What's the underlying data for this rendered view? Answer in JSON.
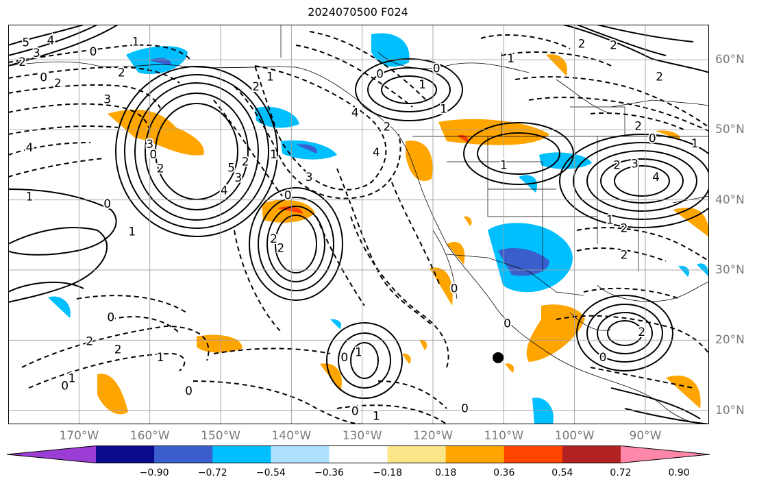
{
  "title": "2024070500 F024",
  "map": {
    "lon_range": [
      -180,
      -81
    ],
    "lat_range": [
      8,
      65
    ],
    "gridlines": true,
    "lon_labels": [
      "170°W",
      "160°W",
      "150°W",
      "140°W",
      "130°W",
      "120°W",
      "110°W",
      "100°W",
      "90°W"
    ],
    "lon_values": [
      -170,
      -160,
      -150,
      -140,
      -130,
      -120,
      -110,
      -100,
      -90
    ],
    "lat_labels": [
      "10°N",
      "20°N",
      "30°N",
      "40°N",
      "50°N",
      "60°N"
    ],
    "lat_values": [
      10,
      20,
      30,
      40,
      50,
      60
    ],
    "contour_labels": [
      {
        "text": "5",
        "lon": -177.5,
        "lat": 62.5
      },
      {
        "text": "4",
        "lon": -174,
        "lat": 62.8
      },
      {
        "text": "3",
        "lon": -176,
        "lat": 61
      },
      {
        "text": "2",
        "lon": -178,
        "lat": 59.7
      },
      {
        "text": "0",
        "lon": -175,
        "lat": 57.5
      },
      {
        "text": "2",
        "lon": -173,
        "lat": 56.7
      },
      {
        "text": "3",
        "lon": -166,
        "lat": 54.4
      },
      {
        "text": "4",
        "lon": -177,
        "lat": 47.5
      },
      {
        "text": "2",
        "lon": -164,
        "lat": 58.2
      },
      {
        "text": "0",
        "lon": -168,
        "lat": 61.2
      },
      {
        "text": "1",
        "lon": -162,
        "lat": 62.6
      },
      {
        "text": "2",
        "lon": -145,
        "lat": 56.2
      },
      {
        "text": "1",
        "lon": -143,
        "lat": 57.6
      },
      {
        "text": "3",
        "lon": -160,
        "lat": 48
      },
      {
        "text": "0",
        "lon": -159.5,
        "lat": 46.5
      },
      {
        "text": "2",
        "lon": -158.5,
        "lat": 44.5
      },
      {
        "text": "5",
        "lon": -148.5,
        "lat": 44.6
      },
      {
        "text": "4",
        "lon": -149.5,
        "lat": 41.4
      },
      {
        "text": "3",
        "lon": -147.5,
        "lat": 43.2
      },
      {
        "text": "2",
        "lon": -146.5,
        "lat": 45.5
      },
      {
        "text": "1",
        "lon": -142.5,
        "lat": 46.5
      },
      {
        "text": "3",
        "lon": -137.5,
        "lat": 43.3
      },
      {
        "text": "4",
        "lon": -128,
        "lat": 46.8
      },
      {
        "text": "4",
        "lon": -131,
        "lat": 52.5
      },
      {
        "text": "2",
        "lon": -126.5,
        "lat": 50.5
      },
      {
        "text": "1",
        "lon": -177,
        "lat": 40.5
      },
      {
        "text": "0",
        "lon": -166,
        "lat": 39.5
      },
      {
        "text": "1",
        "lon": -162.5,
        "lat": 35.5
      },
      {
        "text": "0",
        "lon": -140.5,
        "lat": 40.7
      },
      {
        "text": "2",
        "lon": -142.5,
        "lat": 34.5
      },
      {
        "text": "2",
        "lon": -141.5,
        "lat": 33.2
      },
      {
        "text": "0",
        "lon": -127.5,
        "lat": 58
      },
      {
        "text": "1",
        "lon": -121.5,
        "lat": 56.5
      },
      {
        "text": "0",
        "lon": -119.5,
        "lat": 58.8
      },
      {
        "text": "1",
        "lon": -118.5,
        "lat": 53
      },
      {
        "text": "1",
        "lon": -110,
        "lat": 45
      },
      {
        "text": "1",
        "lon": -109,
        "lat": 60.2
      },
      {
        "text": "2",
        "lon": -99,
        "lat": 62.3
      },
      {
        "text": "2",
        "lon": -94.5,
        "lat": 62.1
      },
      {
        "text": "2",
        "lon": -88,
        "lat": 57.6
      },
      {
        "text": "2",
        "lon": -91,
        "lat": 50.6
      },
      {
        "text": "0",
        "lon": -89,
        "lat": 48.8
      },
      {
        "text": "1",
        "lon": -83,
        "lat": 48.1
      },
      {
        "text": "2",
        "lon": -94,
        "lat": 45
      },
      {
        "text": "3",
        "lon": -91.5,
        "lat": 45.2
      },
      {
        "text": "4",
        "lon": -88.5,
        "lat": 43.3
      },
      {
        "text": "1",
        "lon": -95,
        "lat": 37.2
      },
      {
        "text": "2",
        "lon": -93,
        "lat": 36
      },
      {
        "text": "2",
        "lon": -93,
        "lat": 32.2
      },
      {
        "text": "2",
        "lon": -90.5,
        "lat": 21.2
      },
      {
        "text": "0",
        "lon": -96,
        "lat": 17.6
      },
      {
        "text": "0",
        "lon": -109.5,
        "lat": 22.4
      },
      {
        "text": "0",
        "lon": -117,
        "lat": 27.4
      },
      {
        "text": "0",
        "lon": -132.5,
        "lat": 17.6
      },
      {
        "text": "1",
        "lon": -130.5,
        "lat": 18.3
      },
      {
        "text": "0",
        "lon": -131,
        "lat": 9.9
      },
      {
        "text": "1",
        "lon": -128,
        "lat": 9.2
      },
      {
        "text": "0",
        "lon": -115.5,
        "lat": 10.3
      },
      {
        "text": "0",
        "lon": -154.5,
        "lat": 12.8
      },
      {
        "text": "2",
        "lon": -168.5,
        "lat": 19.9
      },
      {
        "text": "2",
        "lon": -164.5,
        "lat": 18.7
      },
      {
        "text": "1",
        "lon": -158.5,
        "lat": 17.6
      },
      {
        "text": "1",
        "lon": -171,
        "lat": 14.6
      },
      {
        "text": "0",
        "lon": -172,
        "lat": 13.5
      },
      {
        "text": "0",
        "lon": -165.5,
        "lat": 23.3
      }
    ],
    "marker": {
      "lon": -110.8,
      "lat": 17.5
    }
  },
  "colorbar": {
    "colors": [
      "#9c3dd6",
      "#0a0a8c",
      "#3a5fcd",
      "#00bfff",
      "#aee2ff",
      "#ffffff",
      "#fde68a",
      "#ffa500",
      "#ff4500",
      "#b22222",
      "#ff88aa"
    ],
    "tick_labels": [
      "−0.90",
      "−0.72",
      "−0.54",
      "−0.36",
      "−0.18",
      "0.18",
      "0.36",
      "0.54",
      "0.72",
      "0.90"
    ],
    "tick_values": [
      -0.9,
      -0.72,
      -0.54,
      -0.36,
      -0.18,
      0.18,
      0.36,
      0.54,
      0.72,
      0.9
    ],
    "extend": "both"
  }
}
